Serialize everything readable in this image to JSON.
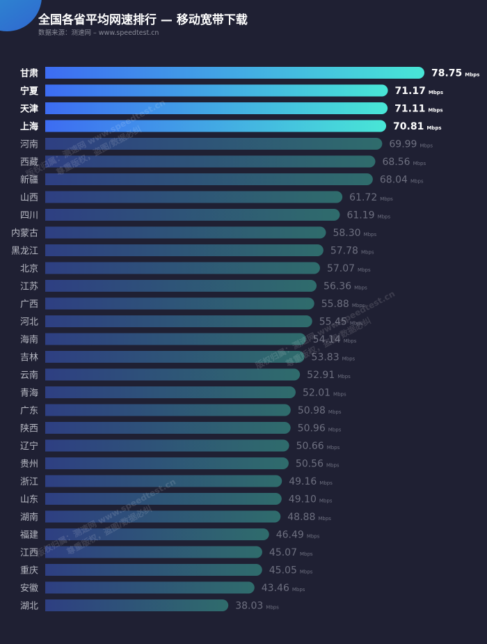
{
  "header": {
    "title": "全国各省平均网速排行 — 移动宽带下载",
    "source": "数据来源：测速网 – www.speedtest.cn"
  },
  "watermark": {
    "line1": "版权归属：测速网 www.speedtest.cn",
    "line2": "尊重版权，盗图/数据必纠"
  },
  "colors": {
    "background": "#1f2033",
    "top_start": "#3d6cf2",
    "top_end": "#48e6d6",
    "dim_start": "#2e3f82",
    "dim_end": "#2f6c6c"
  },
  "chart_data": {
    "type": "bar",
    "orientation": "horizontal",
    "unit": "Mbps",
    "highlighted_top": 4,
    "categories": [
      "甘肃",
      "宁夏",
      "天津",
      "上海",
      "河南",
      "西藏",
      "新疆",
      "山西",
      "四川",
      "内蒙古",
      "黑龙江",
      "北京",
      "江苏",
      "广西",
      "河北",
      "海南",
      "吉林",
      "云南",
      "青海",
      "广东",
      "陕西",
      "辽宁",
      "贵州",
      "浙江",
      "山东",
      "湖南",
      "福建",
      "江西",
      "重庆",
      "安徽",
      "湖北"
    ],
    "values": [
      78.75,
      71.17,
      71.11,
      70.81,
      69.99,
      68.56,
      68.04,
      61.72,
      61.19,
      58.3,
      57.78,
      57.07,
      56.36,
      55.88,
      55.45,
      54.14,
      53.83,
      52.91,
      52.01,
      50.98,
      50.96,
      50.66,
      50.56,
      49.16,
      49.1,
      48.88,
      46.49,
      45.07,
      45.05,
      43.46,
      38.03
    ]
  }
}
